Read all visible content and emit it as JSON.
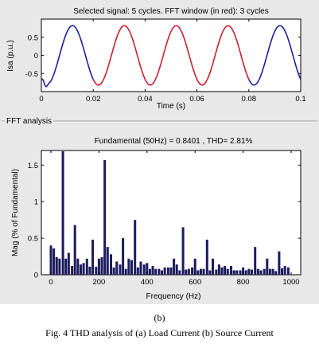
{
  "top_chart": {
    "title": "Selected signal: 5 cycles. FFT window (in red): 3 cycles",
    "xlabel": "Time (s)",
    "ylabel": "Isa (p.u.)",
    "xlim": [
      0,
      0.1
    ],
    "ylim": [
      -1,
      1
    ],
    "xticks": [
      "0",
      "0.02",
      "0.04",
      "0.06",
      "0.08",
      "0.1"
    ],
    "yticks": [
      "0.5",
      "0",
      "-0.5"
    ],
    "colors": {
      "signal": "#1f1fa0",
      "fft_window": "#cc1f2f"
    }
  },
  "fft_panel": {
    "label": "FFT analysis"
  },
  "chart_data": {
    "type": "bar",
    "title": "Fundamental (50Hz) = 0.8401 , THD= 2.81%",
    "xlabel": "Frequency (Hz)",
    "ylabel": "Mag (% of Fundamental)",
    "xlim": [
      0,
      1000
    ],
    "ylim": [
      0,
      1.7
    ],
    "xticks": [
      "0",
      "200",
      "400",
      "600",
      "800",
      "1000"
    ],
    "yticks": [
      "1.5",
      "1",
      "0.5",
      "0"
    ],
    "bar_color": "#1c1c5e",
    "x": [
      0,
      12,
      24,
      36,
      50,
      62,
      74,
      88,
      100,
      112,
      124,
      136,
      150,
      162,
      174,
      188,
      200,
      212,
      224,
      236,
      250,
      262,
      274,
      288,
      300,
      312,
      324,
      336,
      350,
      362,
      374,
      388,
      400,
      412,
      424,
      436,
      450,
      462,
      474,
      488,
      500,
      512,
      524,
      536,
      550,
      562,
      574,
      588,
      600,
      612,
      624,
      636,
      650,
      662,
      674,
      688,
      700,
      712,
      724,
      736,
      750,
      762,
      774,
      788,
      800,
      812,
      824,
      836,
      850,
      862,
      874,
      888,
      900,
      912,
      924,
      936,
      950,
      962,
      974,
      988
    ],
    "values": [
      0.4,
      0.36,
      0.24,
      0.22,
      1.7,
      0.22,
      0.3,
      0.12,
      0.68,
      0.22,
      0.14,
      0.16,
      0.22,
      0.11,
      0.48,
      0.11,
      0.22,
      0.24,
      1.57,
      0.38,
      0.28,
      0.1,
      0.18,
      0.14,
      0.5,
      0.08,
      0.22,
      0.2,
      0.75,
      0.1,
      0.18,
      0.14,
      0.16,
      0.08,
      0.12,
      0.08,
      0.08,
      0.06,
      0.1,
      0.1,
      0.1,
      0.22,
      0.14,
      0.06,
      0.65,
      0.07,
      0.08,
      0.1,
      0.22,
      0.06,
      0.08,
      0.08,
      0.48,
      0.06,
      0.22,
      0.07,
      0.14,
      0.1,
      0.12,
      0.08,
      0.12,
      0.06,
      0.06,
      0.06,
      0.1,
      0.06,
      0.08,
      0.07,
      0.38,
      0.08,
      0.06,
      0.08,
      0.22,
      0.08,
      0.08,
      0.05,
      0.32,
      0.09,
      0.12,
      0.1
    ]
  },
  "captions": {
    "sub": "(b)",
    "figure": "Fig. 4 THD analysis of (a) Load Current (b) Source Current"
  }
}
